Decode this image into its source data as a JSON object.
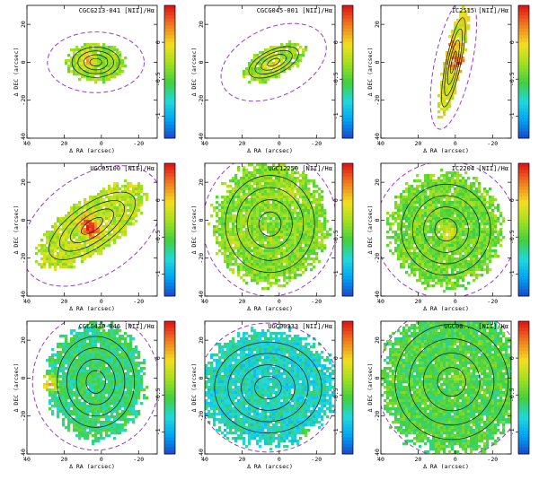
{
  "figure": {
    "x_axis_label": "Δ RA (arcsec)",
    "y_axis_label": "Δ DEC (arcsec)",
    "x_ticks": [
      40,
      20,
      0,
      -20
    ],
    "y_ticks": [
      20,
      0,
      -20,
      -40
    ],
    "colorbar_ticks": [
      0,
      -0.5,
      -1
    ],
    "colormap": [
      "#2040c8",
      "#00a0f0",
      "#20d8e0",
      "#40d040",
      "#a0e020",
      "#f0e020",
      "#f08020",
      "#e01818"
    ]
  },
  "chart_data": [
    {
      "type": "heatmap",
      "title": "CGCG213-041 [NII]/Hα",
      "xlabel": "Δ RA (arcsec)",
      "ylabel": "Δ DEC (arcsec)",
      "xlim": [
        40,
        -30
      ],
      "ylim": [
        -40,
        30
      ],
      "clim": [
        -1.3,
        0.5
      ],
      "map": {
        "x": 3,
        "y": 0,
        "rx": 16,
        "ry": 10,
        "angle": 0,
        "level": -0.3
      },
      "hotspots": [
        {
          "x": 8,
          "y": 2,
          "level": 0.1
        }
      ],
      "outer_contour": {
        "x": 3,
        "y": 0,
        "rx": 26,
        "ry": 16,
        "angle": 0
      }
    },
    {
      "type": "heatmap",
      "title": "CGCG045-001 [NII]/Hα",
      "xlabel": "Δ RA (arcsec)",
      "ylabel": "Δ DEC (arcsec)",
      "xlim": [
        40,
        -30
      ],
      "ylim": [
        -40,
        30
      ],
      "clim": [
        -1.3,
        0.5
      ],
      "map": {
        "x": 3,
        "y": 0,
        "rx": 18,
        "ry": 8,
        "angle": 25,
        "level": -0.3
      },
      "hotspots": [
        {
          "x": 4,
          "y": 0,
          "level": 0.0
        }
      ],
      "outer_contour": {
        "x": 3,
        "y": 0,
        "rx": 30,
        "ry": 18,
        "angle": 25
      }
    },
    {
      "type": "heatmap",
      "title": "IC2515 [NII]/Hα",
      "xlabel": "Δ RA (arcsec)",
      "ylabel": "Δ DEC (arcsec)",
      "xlim": [
        40,
        -30
      ],
      "ylim": [
        -40,
        30
      ],
      "clim": [
        -1.3,
        0.5
      ],
      "map": {
        "x": 1,
        "y": 0,
        "rx": 5,
        "ry": 30,
        "angle": -12,
        "level": -0.1
      },
      "hotspots": [
        {
          "x": 0,
          "y": 0,
          "level": 0.4
        },
        {
          "x": 3,
          "y": 10,
          "level": 0.2
        }
      ],
      "outer_contour": {
        "x": 1,
        "y": 0,
        "rx": 10,
        "ry": 36,
        "angle": -12
      }
    },
    {
      "type": "heatmap",
      "title": "UGC05100 [NII]/Hα",
      "xlabel": "Δ RA (arcsec)",
      "ylabel": "Δ DEC (arcsec)",
      "xlim": [
        40,
        -30
      ],
      "ylim": [
        -40,
        30
      ],
      "clim": [
        -1.3,
        0.5
      ],
      "map": {
        "x": 5,
        "y": -3,
        "rx": 34,
        "ry": 14,
        "angle": 35,
        "level": -0.2
      },
      "hotspots": [
        {
          "x": 5,
          "y": -5,
          "level": 0.4
        },
        {
          "x": 9,
          "y": -1,
          "level": 0.3
        }
      ],
      "outer_contour": {
        "x": 5,
        "y": -3,
        "rx": 42,
        "ry": 26,
        "angle": 35
      }
    },
    {
      "type": "heatmap",
      "title": "UGC12250 [NII]/Hα",
      "xlabel": "Δ RA (arcsec)",
      "ylabel": "Δ DEC (arcsec)",
      "xlim": [
        40,
        -30
      ],
      "ylim": [
        -40,
        30
      ],
      "clim": [
        -1.3,
        0.5
      ],
      "map": {
        "x": 5,
        "y": -2,
        "rx": 30,
        "ry": 32,
        "angle": 0,
        "level": -0.35
      },
      "hotspots": [
        {
          "x": 25,
          "y": -10,
          "level": -0.15
        },
        {
          "x": -5,
          "y": 15,
          "level": -0.1
        }
      ],
      "outer_contour": {
        "x": 5,
        "y": -2,
        "rx": 36,
        "ry": 38,
        "angle": 0
      }
    },
    {
      "type": "heatmap",
      "title": "IC2204 [NII]/Hα",
      "xlabel": "Δ RA (arcsec)",
      "ylabel": "Δ DEC (arcsec)",
      "xlim": [
        40,
        -30
      ],
      "ylim": [
        -40,
        30
      ],
      "clim": [
        -1.3,
        0.5
      ],
      "map": {
        "x": 5,
        "y": -5,
        "rx": 30,
        "ry": 30,
        "angle": 0,
        "level": -0.4
      },
      "hotspots": [
        {
          "x": 5,
          "y": -5,
          "level": -0.05
        }
      ],
      "outer_contour": {
        "x": 5,
        "y": -5,
        "rx": 38,
        "ry": 36,
        "angle": 0
      }
    },
    {
      "type": "heatmap",
      "title": "CGCG430-046 [NII]/Hα",
      "xlabel": "Δ RA (arcsec)",
      "ylabel": "Δ DEC (arcsec)",
      "xlim": [
        40,
        -30
      ],
      "ylim": [
        -40,
        30
      ],
      "clim": [
        -1.3,
        0.5
      ],
      "map": {
        "x": 3,
        "y": -2,
        "rx": 26,
        "ry": 30,
        "angle": 0,
        "level": -0.6
      },
      "hotspots": [
        {
          "x": 29,
          "y": -2,
          "level": 0.2
        }
      ],
      "outer_contour": {
        "x": 3,
        "y": -2,
        "rx": 34,
        "ry": 36,
        "angle": 0
      }
    },
    {
      "type": "heatmap",
      "title": "UGC00333 [NII]/Hα",
      "xlabel": "Δ RA (arcsec)",
      "ylabel": "Δ DEC (arcsec)",
      "xlim": [
        40,
        -30
      ],
      "ylim": [
        -40,
        30
      ],
      "clim": [
        -1.3,
        0.5
      ],
      "map": {
        "x": 6,
        "y": -5,
        "rx": 36,
        "ry": 30,
        "angle": 0,
        "level": -0.75
      },
      "hotspots": [
        {
          "x": -15,
          "y": -32,
          "level": 0.2
        }
      ],
      "outer_contour": {
        "x": 6,
        "y": -5,
        "rx": 38,
        "ry": 34,
        "angle": 0
      }
    },
    {
      "type": "heatmap",
      "title": "UGC00... [NII]/Hα",
      "xlabel": "Δ RA (arcsec)",
      "ylabel": "Δ DEC (arcsec)",
      "xlim": [
        40,
        -30
      ],
      "ylim": [
        -40,
        30
      ],
      "clim": [
        -1.3,
        0.5
      ],
      "map": {
        "x": 2,
        "y": -2,
        "rx": 38,
        "ry": 38,
        "angle": 0,
        "level": -0.5
      },
      "hotspots": [
        {
          "x": -2,
          "y": 2,
          "level": -0.3
        }
      ],
      "outer_contour": {
        "x": 2,
        "y": -2,
        "rx": 40,
        "ry": 40,
        "angle": 0
      }
    }
  ]
}
